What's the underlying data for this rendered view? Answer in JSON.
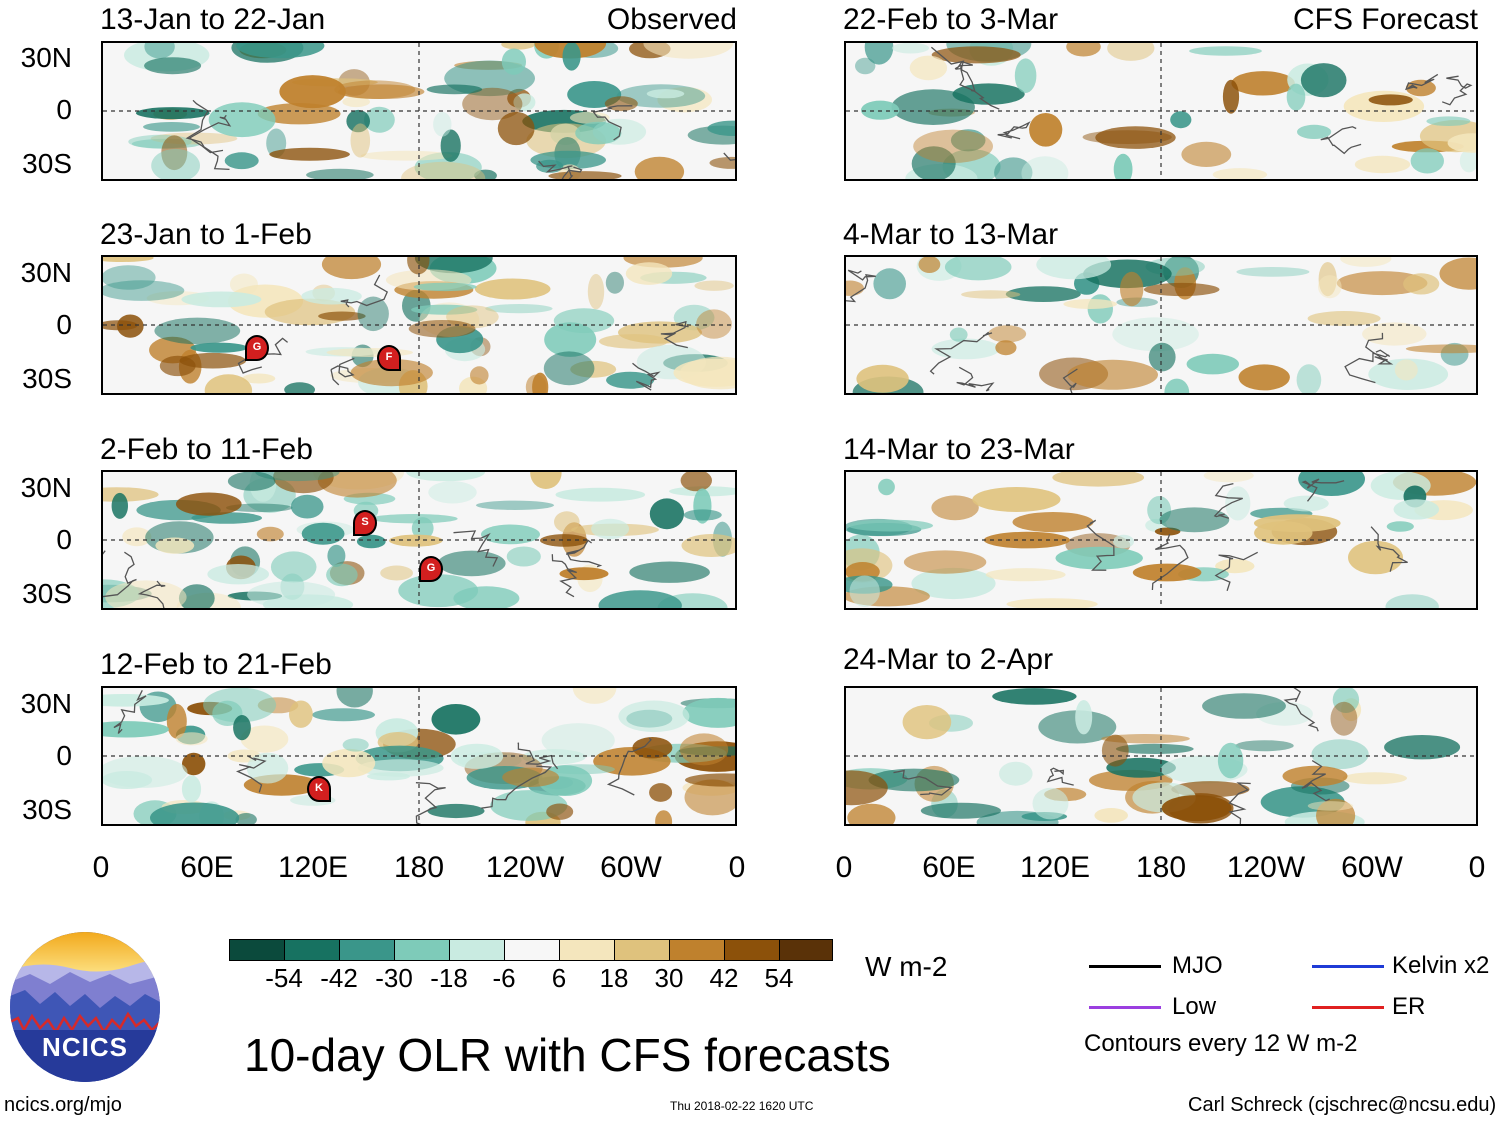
{
  "panels": [
    {
      "title": "13-Jan to 22-Jan",
      "tag": "Observed"
    },
    {
      "title": "23-Jan to 1-Feb",
      "tag": ""
    },
    {
      "title": "2-Feb to 11-Feb",
      "tag": ""
    },
    {
      "title": "12-Feb to 21-Feb",
      "tag": ""
    },
    {
      "title": "22-Feb to 3-Mar",
      "tag": "CFS Forecast"
    },
    {
      "title": "4-Mar to 13-Mar",
      "tag": ""
    },
    {
      "title": "14-Mar to 23-Mar",
      "tag": ""
    },
    {
      "title": "24-Mar to 2-Apr",
      "tag": ""
    }
  ],
  "lat_labels": [
    "30N",
    "0",
    "30S"
  ],
  "lon_labels": [
    "0",
    "60E",
    "120E",
    "180",
    "120W",
    "60W",
    "0"
  ],
  "storms": [
    {
      "panel": 1,
      "letter": "G"
    },
    {
      "panel": 1,
      "letter": "F"
    },
    {
      "panel": 2,
      "letter": "S"
    },
    {
      "panel": 2,
      "letter": "G"
    },
    {
      "panel": 3,
      "letter": "K"
    }
  ],
  "colorbar": {
    "colors": [
      "#0b4a3c",
      "#177261",
      "#3a968a",
      "#7ecbb9",
      "#c9ebe1",
      "#f7f7f7",
      "#f4e6bd",
      "#dfc27d",
      "#bf812d",
      "#8c510a",
      "#5a3208"
    ],
    "ticks": [
      "-54",
      "-42",
      "-30",
      "-18",
      "-6",
      "6",
      "18",
      "30",
      "42",
      "54"
    ],
    "units": "W m-2"
  },
  "legend": {
    "items": [
      {
        "label": "MJO",
        "color": "#000000"
      },
      {
        "label": "Kelvin x2",
        "color": "#1f3bd6"
      },
      {
        "label": "Low",
        "color": "#9b3fe0"
      },
      {
        "label": "ER",
        "color": "#e02020"
      }
    ],
    "contours_note": "Contours every 12 W m-2"
  },
  "logo": {
    "text": "NCICS"
  },
  "title": "10-day OLR with CFS forecasts",
  "footer": {
    "url": "ncics.org/mjo",
    "timestamp": "Thu 2018-02-22 1620 UTC",
    "author": "Carl Schreck (cjschrec@ncsu.edu)"
  }
}
